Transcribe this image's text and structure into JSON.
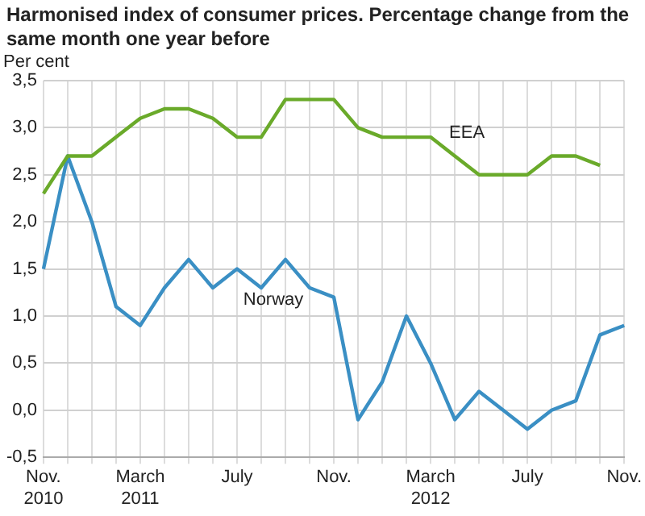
{
  "chart_data": {
    "type": "line",
    "title": "Harmonised index of consumer prices. Percentage change from the same month one year before",
    "ylabel": "Per cent",
    "categories": [
      "Nov.\n2010",
      null,
      null,
      null,
      "March\n2011",
      null,
      null,
      null,
      "July",
      null,
      null,
      null,
      "Nov.",
      null,
      null,
      null,
      "March\n2012",
      null,
      null,
      null,
      "July",
      null,
      null,
      null,
      "Nov."
    ],
    "series": [
      {
        "name": "EEA",
        "color": "#6aaa2a",
        "values": [
          2.3,
          2.7,
          2.7,
          2.9,
          3.1,
          3.2,
          3.2,
          3.1,
          2.9,
          2.9,
          3.3,
          3.3,
          3.3,
          3.0,
          2.9,
          2.9,
          2.9,
          2.7,
          2.5,
          2.5,
          2.5,
          2.7,
          2.7,
          2.6,
          null
        ]
      },
      {
        "name": "Norway",
        "color": "#3a8fc4",
        "values": [
          1.5,
          2.7,
          2.0,
          1.1,
          0.9,
          1.3,
          1.6,
          1.3,
          1.5,
          1.3,
          1.6,
          1.3,
          1.2,
          -0.1,
          0.3,
          1.0,
          0.5,
          -0.1,
          0.2,
          0.0,
          -0.2,
          0.0,
          0.1,
          0.8,
          0.9
        ]
      }
    ],
    "ylim": [
      -0.5,
      3.5
    ],
    "yticks": [
      {
        "value": -0.5,
        "label": "-0,5"
      },
      {
        "value": 0,
        "label": "0,0"
      },
      {
        "value": 0.5,
        "label": "0,5"
      },
      {
        "value": 1,
        "label": "1,0"
      },
      {
        "value": 1.5,
        "label": "1,5"
      },
      {
        "value": 2,
        "label": "2,0"
      },
      {
        "value": 2.5,
        "label": "2,5"
      },
      {
        "value": 3,
        "label": "3,0"
      },
      {
        "value": 3.5,
        "label": "3,5"
      }
    ],
    "grid": true,
    "legend": false,
    "marker": "none",
    "line_style": "solid"
  }
}
